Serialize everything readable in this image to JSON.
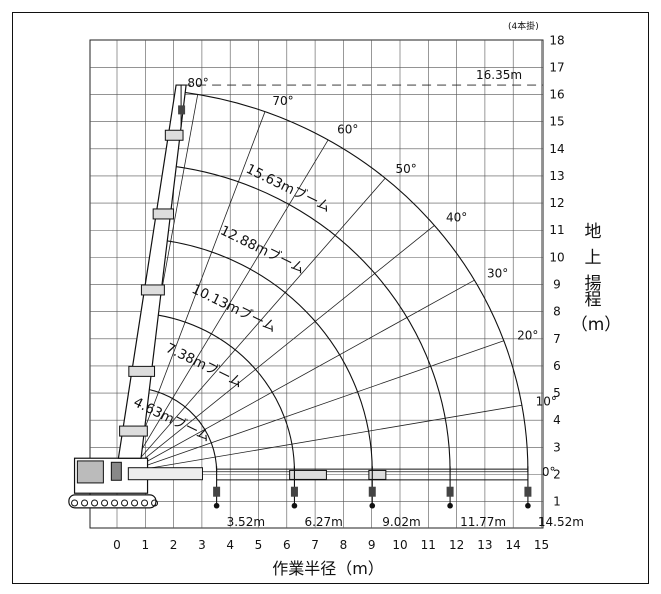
{
  "chart_data": {
    "type": "diagram",
    "title": "",
    "note": "(4本掛)",
    "xlabel": "作業半径（m）",
    "ylabel_chars": [
      "地",
      "上",
      "揚",
      "程"
    ],
    "ylabel_unit": "（m）",
    "x_ticks": [
      "0",
      "1",
      "2",
      "3",
      "4",
      "5",
      "6",
      "7",
      "8",
      "9",
      "10",
      "11",
      "12",
      "13",
      "14",
      "15"
    ],
    "y_ticks": [
      "1",
      "2",
      "3",
      "4",
      "5",
      "6",
      "7",
      "8",
      "9",
      "10",
      "11",
      "12",
      "13",
      "14",
      "15",
      "16",
      "17",
      "18"
    ],
    "xlim": [
      -0.8,
      15.0
    ],
    "ylim": [
      0.3,
      18.3
    ],
    "pivot": {
      "x": 0.4,
      "y": 2.1
    },
    "max_height_label": "16.35m",
    "max_height_value": 16.35,
    "boom_lengths": [
      4.63,
      7.38,
      10.13,
      12.88,
      15.63
    ],
    "boom_labels": [
      "4.63mブーム",
      "7.38mブーム",
      "10.13mブーム",
      "12.88mブーム",
      "15.63mブーム"
    ],
    "radii": [
      3.52,
      6.27,
      9.02,
      11.77,
      14.52
    ],
    "radius_labels": [
      "3.52m",
      "6.27m",
      "9.02m",
      "11.77m",
      "14.52m"
    ],
    "angles": [
      0,
      10,
      20,
      30,
      40,
      50,
      60,
      70,
      80
    ],
    "angle_labels": [
      "0°",
      "10°",
      "20°",
      "30°",
      "40°",
      "50°",
      "60°",
      "70°",
      "80°"
    ]
  }
}
